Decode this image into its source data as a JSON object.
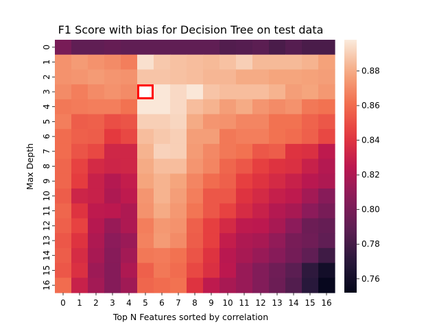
{
  "chart_data": {
    "type": "heatmap",
    "title": "F1 Score with bias for Decision Tree on test data",
    "xlabel": "Top N Features sorted by correlation",
    "ylabel": "Max Depth",
    "x_categories": [
      "0",
      "1",
      "2",
      "3",
      "4",
      "5",
      "6",
      "7",
      "8",
      "9",
      "10",
      "11",
      "12",
      "13",
      "14",
      "15",
      "16"
    ],
    "y_categories": [
      "0",
      "1",
      "2",
      "3",
      "4",
      "5",
      "6",
      "7",
      "8",
      "9",
      "10",
      "11",
      "12",
      "13",
      "14",
      "15",
      "16"
    ],
    "values": [
      [
        0.8,
        0.79,
        0.79,
        0.792,
        0.79,
        0.79,
        0.79,
        0.79,
        0.79,
        0.79,
        0.785,
        0.786,
        0.788,
        0.782,
        0.786,
        0.782,
        0.782
      ],
      [
        0.872,
        0.875,
        0.872,
        0.87,
        0.866,
        0.895,
        0.888,
        0.886,
        0.885,
        0.884,
        0.886,
        0.89,
        0.884,
        0.884,
        0.884,
        0.882,
        0.877
      ],
      [
        0.872,
        0.873,
        0.875,
        0.873,
        0.872,
        0.887,
        0.887,
        0.886,
        0.885,
        0.883,
        0.883,
        0.88,
        0.88,
        0.878,
        0.878,
        0.877,
        0.876
      ],
      [
        0.87,
        0.866,
        0.87,
        0.872,
        0.87,
        null,
        0.897,
        0.893,
        0.897,
        0.887,
        0.885,
        0.885,
        0.885,
        0.882,
        0.876,
        0.878,
        0.874
      ],
      [
        0.864,
        0.865,
        0.866,
        0.866,
        0.862,
        0.897,
        0.897,
        0.893,
        0.885,
        0.882,
        0.876,
        0.88,
        0.873,
        0.87,
        0.872,
        0.864,
        0.862
      ],
      [
        0.866,
        0.855,
        0.856,
        0.85,
        0.852,
        0.89,
        0.89,
        0.892,
        0.88,
        0.873,
        0.872,
        0.868,
        0.868,
        0.862,
        0.862,
        0.857,
        0.853
      ],
      [
        0.86,
        0.856,
        0.855,
        0.843,
        0.848,
        0.885,
        0.888,
        0.89,
        0.876,
        0.876,
        0.864,
        0.866,
        0.866,
        0.862,
        0.86,
        0.856,
        0.848
      ],
      [
        0.86,
        0.852,
        0.848,
        0.833,
        0.833,
        0.882,
        0.891,
        0.89,
        0.875,
        0.869,
        0.864,
        0.862,
        0.853,
        0.855,
        0.84,
        0.838,
        0.826
      ],
      [
        0.858,
        0.846,
        0.835,
        0.832,
        0.833,
        0.88,
        0.885,
        0.885,
        0.873,
        0.868,
        0.858,
        0.853,
        0.845,
        0.84,
        0.838,
        0.83,
        0.822
      ],
      [
        0.858,
        0.844,
        0.83,
        0.822,
        0.828,
        0.878,
        0.882,
        0.878,
        0.868,
        0.86,
        0.856,
        0.845,
        0.84,
        0.835,
        0.83,
        0.824,
        0.82
      ],
      [
        0.855,
        0.832,
        0.83,
        0.82,
        0.826,
        0.873,
        0.882,
        0.876,
        0.866,
        0.853,
        0.853,
        0.84,
        0.835,
        0.829,
        0.826,
        0.816,
        0.806
      ],
      [
        0.858,
        0.84,
        0.826,
        0.825,
        0.82,
        0.872,
        0.88,
        0.874,
        0.863,
        0.853,
        0.846,
        0.836,
        0.83,
        0.822,
        0.818,
        0.808,
        0.8
      ],
      [
        0.856,
        0.846,
        0.823,
        0.812,
        0.82,
        0.866,
        0.874,
        0.872,
        0.856,
        0.845,
        0.835,
        0.826,
        0.825,
        0.818,
        0.808,
        0.795,
        0.792
      ],
      [
        0.853,
        0.84,
        0.82,
        0.808,
        0.813,
        0.867,
        0.875,
        0.87,
        0.855,
        0.845,
        0.828,
        0.82,
        0.818,
        0.81,
        0.8,
        0.796,
        0.79
      ],
      [
        0.855,
        0.836,
        0.818,
        0.806,
        0.816,
        0.864,
        0.865,
        0.862,
        0.852,
        0.84,
        0.824,
        0.818,
        0.812,
        0.806,
        0.798,
        0.79,
        0.778
      ],
      [
        0.853,
        0.838,
        0.814,
        0.805,
        0.82,
        0.856,
        0.864,
        0.86,
        0.848,
        0.838,
        0.825,
        0.812,
        0.804,
        0.796,
        0.788,
        0.772,
        0.76
      ],
      [
        0.86,
        0.83,
        0.816,
        0.805,
        0.815,
        0.858,
        0.86,
        0.862,
        0.84,
        0.826,
        0.818,
        0.812,
        0.804,
        0.795,
        0.785,
        0.77,
        0.754
      ]
    ],
    "value_range": [
      0.752,
      0.898
    ],
    "colormap": "rocket",
    "colorbar_ticks": [
      "0.76",
      "0.78",
      "0.80",
      "0.82",
      "0.84",
      "0.86",
      "0.88"
    ],
    "highlight_cell": {
      "row": 3,
      "col": 5,
      "color": "#ff0000"
    },
    "grid": false
  }
}
